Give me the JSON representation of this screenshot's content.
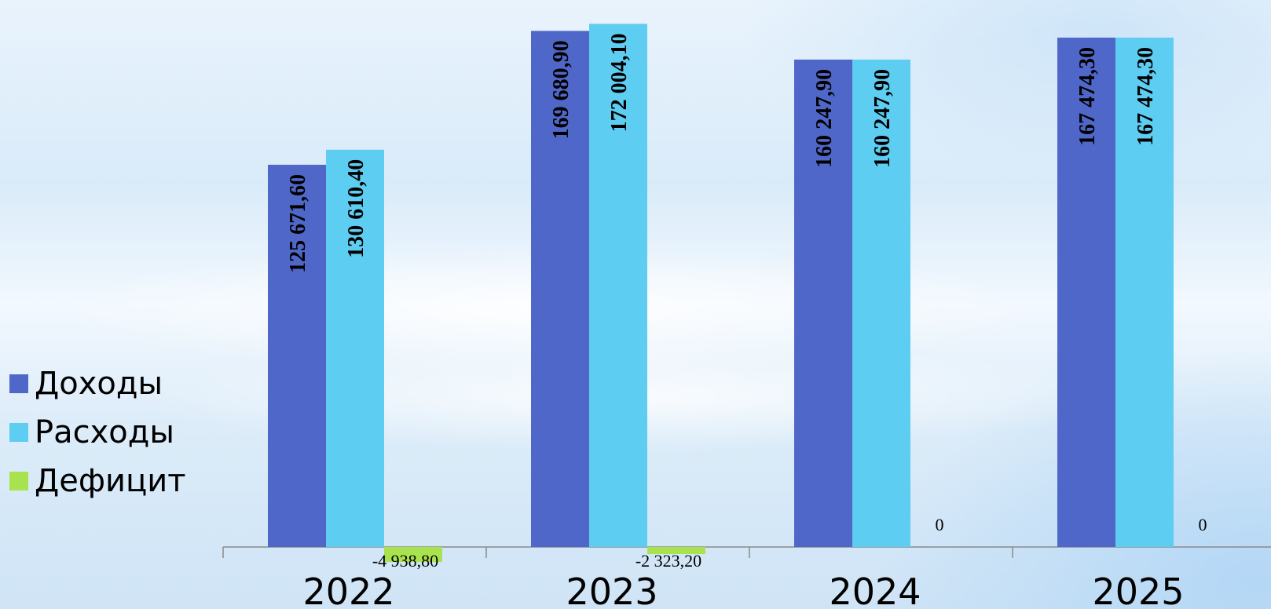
{
  "chart_data": {
    "type": "bar",
    "categories": [
      "2022",
      "2023",
      "2024",
      "2025"
    ],
    "series": [
      {
        "name": "Доходы",
        "color": "#4f67c8",
        "values": [
          125671.6,
          169680.9,
          160247.9,
          167474.3
        ],
        "labels": [
          "125 671,60",
          "169 680,90",
          "160 247,90",
          "167 474,30"
        ]
      },
      {
        "name": "Расходы",
        "color": "#5ecdf2",
        "values": [
          130610.4,
          172004.1,
          160247.9,
          167474.3
        ],
        "labels": [
          "130 610,40",
          "172 004,10",
          "160 247,90",
          "167 474,30"
        ]
      },
      {
        "name": "Дефицит",
        "color": "#a8e34f",
        "values": [
          -4938.8,
          -2323.2,
          0,
          0
        ],
        "labels": [
          "-4 938,80",
          "-2 323,20",
          "0",
          "0"
        ]
      }
    ],
    "legend_position": "left",
    "grid": false
  }
}
